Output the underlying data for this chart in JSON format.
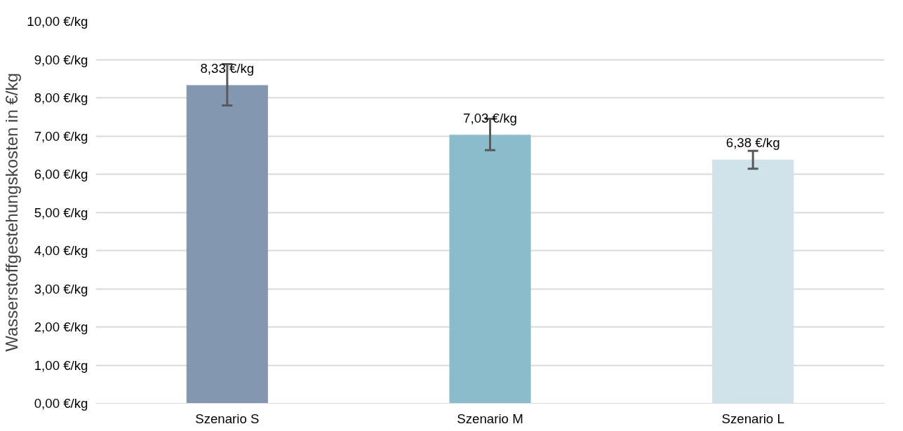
{
  "chart_data": {
    "type": "bar",
    "ylabel": "Wasserstoffgestehungskosten in €/kg",
    "categories": [
      "Szenario S",
      "Szenario M",
      "Szenario L"
    ],
    "values": [
      8.33,
      7.03,
      6.38
    ],
    "colors": [
      "#8497b0",
      "#8abccb",
      "#d0e3ea"
    ],
    "errors": [
      [
        7.8,
        8.88
      ],
      [
        6.63,
        7.45
      ],
      [
        6.14,
        6.61
      ]
    ],
    "value_labels": [
      "8,33 €/kg",
      "7,03 €/kg",
      "6,38 €/kg"
    ],
    "ylim": [
      0,
      10
    ],
    "yticks": [
      {
        "value": 0,
        "label": "0,00 €/kg"
      },
      {
        "value": 1,
        "label": "1,00 €/kg"
      },
      {
        "value": 2,
        "label": "2,00 €/kg"
      },
      {
        "value": 3,
        "label": "3,00 €/kg"
      },
      {
        "value": 4,
        "label": "4,00 €/kg"
      },
      {
        "value": 5,
        "label": "5,00 €/kg"
      },
      {
        "value": 6,
        "label": "6,00 €/kg"
      },
      {
        "value": 7,
        "label": "7,00 €/kg"
      },
      {
        "value": 8,
        "label": "8,00 €/kg"
      },
      {
        "value": 9,
        "label": "9,00 €/kg"
      },
      {
        "value": 10,
        "label": "10,00 €/kg"
      }
    ],
    "grid": "y"
  }
}
